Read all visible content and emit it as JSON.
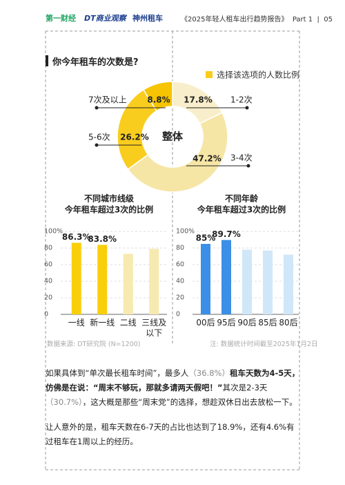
{
  "header": {
    "logos": [
      "第一财经",
      "DT商业观察",
      "神州租车"
    ],
    "report": "《2025年轻人租车出行趋势报告》",
    "part": "Part 1",
    "page": "05"
  },
  "section_title": "你今年租车的次数是?",
  "chart_data": [
    {
      "type": "donut",
      "legend": "选择该选项的人数比例",
      "center_label": "整体",
      "categories": [
        "1-2次",
        "3-4次",
        "5-6次",
        "7次及以上"
      ],
      "values": [
        17.8,
        47.2,
        26.2,
        8.8
      ],
      "value_labels": [
        "17.8%",
        "47.2%",
        "26.2%",
        "8.8%"
      ],
      "colors": [
        "#f8eecb",
        "#f6e6a6",
        "#f9cd1e",
        "#f6c400"
      ]
    },
    {
      "type": "bar",
      "title": [
        "不同城市线级",
        "今年租车超过3次的比例"
      ],
      "categories": [
        "一线",
        "新一线",
        "二线",
        "三线及以下"
      ],
      "values": [
        86.3,
        83.8,
        73,
        79
      ],
      "value_labels": [
        "86.3%",
        "83.8%",
        null,
        null
      ],
      "colors": [
        "#f9cf0c",
        "#f9cf0c",
        "#f6eab0",
        "#f6eab0"
      ],
      "ylim": [
        0,
        100
      ],
      "yticks": [
        0,
        20,
        40,
        60,
        80,
        {
          "value": 100,
          "label": "100%"
        }
      ]
    },
    {
      "type": "bar",
      "title": [
        "不同年龄",
        "今年租车超过3次的比例"
      ],
      "categories": [
        "00后",
        "95后",
        "90后",
        "85后",
        "80后"
      ],
      "values": [
        85,
        89.7,
        78,
        77,
        72
      ],
      "value_labels": [
        "85%",
        "89.7%",
        null,
        null,
        null
      ],
      "colors": [
        "#3b8fe6",
        "#3b8fe6",
        "#cfe7f8",
        "#cfe7f8",
        "#cfe7f8"
      ],
      "ylim": [
        0,
        100
      ],
      "yticks": [
        0,
        20,
        40,
        60,
        80,
        {
          "value": 100,
          "label": "100%"
        }
      ]
    }
  ],
  "sources": [
    "数据来源: DT研究院 (N=1200)",
    "注: 数据统计时间截至2025年1月2日"
  ],
  "paragraphs": [
    [
      {
        "text": "如果具体到“单次最长租车时间”，最多人"
      },
      {
        "text": "（36.8%）",
        "muted": true
      },
      {
        "text": "租车天数为4-5天，仿佛是在说：“周末不够玩，那就多请两天假吧！”",
        "bold": true
      },
      {
        "text": "其次是2-3天"
      },
      {
        "text": "（30.7%）",
        "muted": true
      },
      {
        "text": "，这大概是那些“周末党”的选择，想趁双休日出去放松一下。"
      }
    ],
    [
      {
        "text": "让人意外的是，租车天数在6-7天的占比也达到了18.9%，还有4.6%有过租车在1周以上的经历。"
      }
    ]
  ]
}
